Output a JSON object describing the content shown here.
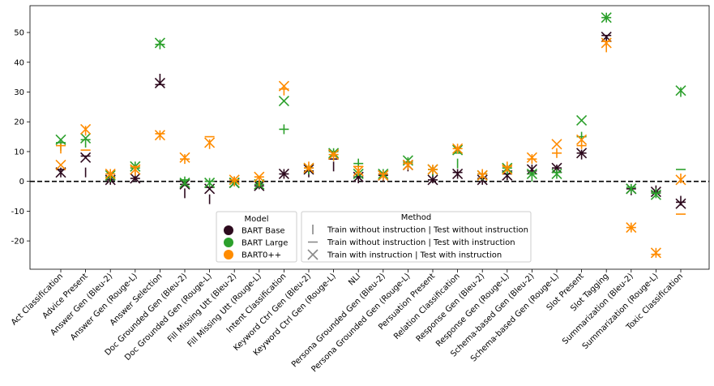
{
  "chart_data": {
    "type": "scatter",
    "title": "",
    "xlabel": "",
    "ylabel": "",
    "ylim": [
      -29.5,
      59
    ],
    "yticks": [
      -20,
      -10,
      0,
      10,
      20,
      30,
      40,
      50
    ],
    "grid": false,
    "reference_line": {
      "y": 0,
      "style": "dashed",
      "color": "#000000"
    },
    "categories": [
      "Act Classification",
      "Advice Present",
      "Answer Gen (Bleu-2)",
      "Answer Gen (Rouge-L)",
      "Answer Selection",
      "Doc Grounded Gen (Bleu-2)",
      "Doc Grounded Gen (Rouge-L)",
      "Fill Missing Utt (Bleu-2)",
      "Fill Missing Utt (Rouge-L)",
      "Intent Classification",
      "Keyword Ctrl Gen (Bleu-2)",
      "Keyword Ctrl Gen (Rouge-L)",
      "NLI",
      "Persona Grounded Gen (Bleu-2)",
      "Persona Grounded Gen (Rouge-L)",
      "Persuation Present",
      "Relation Classification",
      "Response Gen (Bleu-2)",
      "Response Gen (Rouge-L)",
      "Schema-based Gen (Bleu-2)",
      "Schema-based Gen (Rouge-L)",
      "Slot Present",
      "Slot Tagging",
      "Summarization (Bleu-2)",
      "Summarization (Rouge-L)",
      "Toxic Classification"
    ],
    "series": [
      {
        "name": "BART Base",
        "color": "#2d0a1e",
        "values": {
          "vline": [
            3,
            3,
            0.5,
            1.5,
            34.5,
            -4,
            -6,
            0,
            -1,
            2.5,
            3,
            5,
            1,
            1.5,
            5,
            1,
            2.5,
            0.5,
            2,
            4,
            4,
            9,
            47,
            -3,
            -3,
            -6.5
          ],
          "hline": [
            4,
            8.5,
            0.5,
            1,
            32.5,
            -1,
            -2,
            0,
            -1.5,
            2.5,
            3.5,
            7.5,
            1.5,
            2,
            6,
            0.5,
            3,
            1,
            2.5,
            3.5,
            4.5,
            9.5,
            49,
            -2.5,
            -3.5,
            -7
          ],
          "x": [
            3,
            8,
            0.5,
            1,
            33,
            -1,
            -2.5,
            -0.5,
            -1.5,
            2.5,
            4,
            9,
            1.5,
            2,
            5.5,
            0.5,
            2.5,
            0.5,
            2,
            4,
            4.5,
            9.5,
            48.5,
            -2.5,
            -3.5,
            -7.5
          ]
        }
      },
      {
        "name": "BART Large",
        "color": "#2ca02c",
        "values": {
          "vline": [
            12,
            13,
            1.5,
            5,
            46,
            0,
            -0.5,
            0,
            -0.5,
            17.5,
            4,
            9.5,
            6,
            2.5,
            6.5,
            3.5,
            6,
            2,
            4,
            1.5,
            2.5,
            15,
            55,
            -2.5,
            -4,
            30
          ],
          "hline": [
            13,
            14,
            1.5,
            4.5,
            46,
            0.5,
            0,
            -0.5,
            -1,
            17.5,
            4.5,
            10,
            6,
            2.5,
            6.5,
            4,
            9.5,
            2.5,
            4.5,
            2.5,
            3,
            15,
            55,
            -2,
            -4,
            4
          ],
          "x": [
            14,
            14.5,
            2,
            5,
            46.5,
            -0.5,
            -0.5,
            -0.5,
            -1,
            27,
            4.5,
            9.5,
            2.5,
            2.5,
            7,
            4,
            10.5,
            2,
            4.5,
            2.5,
            2.5,
            20.5,
            55,
            -2.5,
            -4.5,
            30.5
          ]
        }
      },
      {
        "name": "BART0++",
        "color": "#ff8c00",
        "values": {
          "vline": [
            11,
            17,
            2.5,
            3.5,
            15.5,
            7.5,
            12.5,
            0,
            0,
            30.5,
            5,
            8.5,
            3.5,
            2,
            5.5,
            4,
            11,
            2.5,
            5,
            7.5,
            9.5,
            12.5,
            45,
            -15.5,
            -24,
            1
          ],
          "hline": [
            12,
            10.5,
            2.5,
            5,
            16,
            7.5,
            15,
            0.5,
            1.5,
            31,
            4.5,
            9,
            5,
            2.5,
            6,
            4,
            11,
            2.5,
            5,
            7.5,
            9.5,
            12,
            47,
            -15.5,
            -24.5,
            -11
          ],
          "x": [
            5.5,
            17.5,
            2.5,
            4,
            15.5,
            8,
            13,
            0.5,
            1.5,
            32,
            4.5,
            9,
            3.5,
            2,
            5.5,
            4,
            11,
            2,
            4,
            8,
            12.5,
            14,
            46.5,
            -15.5,
            -24,
            0.5
          ]
        }
      }
    ],
    "legend_model": {
      "title": "Model",
      "entries": [
        "BART Base",
        "BART Large",
        "BART0++"
      ]
    },
    "legend_method": {
      "title": "Method",
      "entries": [
        {
          "symbol": "vline",
          "label": "Train without instruction | Test without instruction"
        },
        {
          "symbol": "hline",
          "label": "Train without instruction | Test with instruction"
        },
        {
          "symbol": "x",
          "label": "Train with instruction | Test with instruction"
        }
      ]
    }
  }
}
